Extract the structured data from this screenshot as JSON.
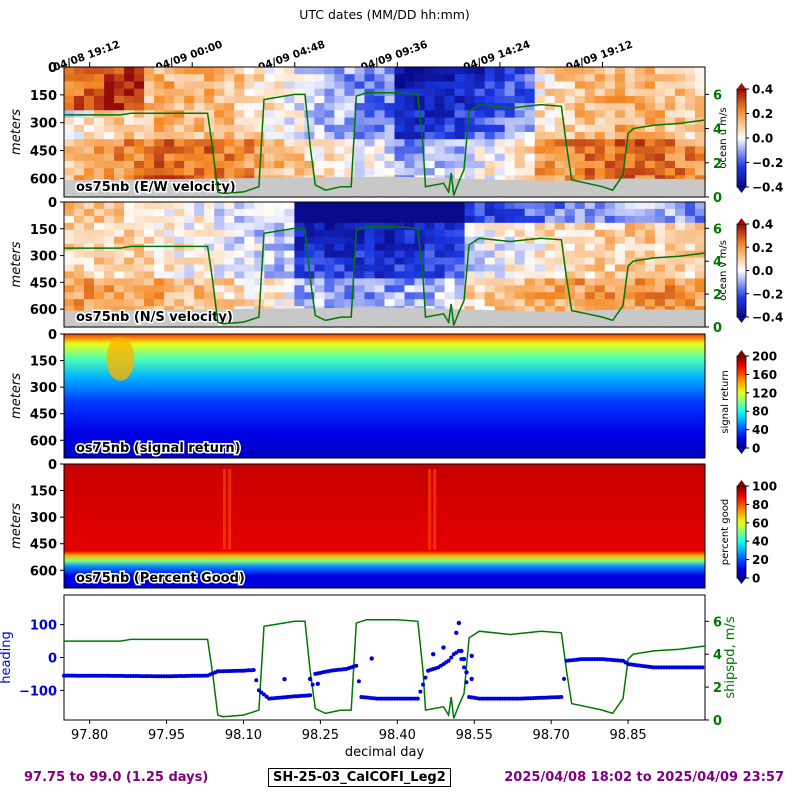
{
  "chart_data": {
    "type": "heatmap",
    "top_axis": {
      "title": "UTC dates (MM/DD hh:mm)",
      "ticks": [
        {
          "label": "04/08 19:12",
          "x": 97.8
        },
        {
          "label": "04/09 00:00",
          "x": 98.0
        },
        {
          "label": "04/09 04:48",
          "x": 98.2
        },
        {
          "label": "04/09 09:36",
          "x": 98.4
        },
        {
          "label": "04/09 14:24",
          "x": 98.6
        },
        {
          "label": "04/09 19:12",
          "x": 98.8
        }
      ]
    },
    "xlim": [
      97.75,
      99.0
    ],
    "x_ticks": [
      97.8,
      97.95,
      98.1,
      98.25,
      98.4,
      98.55,
      98.7,
      98.85
    ],
    "x_tick_labels": [
      "97.80",
      "97.95",
      "98.10",
      "98.25",
      "98.40",
      "98.55",
      "98.70",
      "98.85"
    ],
    "xlabel": "decimal day",
    "depth_ylim": [
      0,
      700
    ],
    "depth_ticks": [
      0,
      150,
      300,
      450,
      600
    ],
    "depth_tick_labels": [
      "0",
      "150",
      "300",
      "450",
      "600"
    ],
    "depth_ylabel": "meters",
    "shipspd_ylim": [
      0,
      7.6
    ],
    "shipspd_ticks": [
      0,
      2,
      4,
      6
    ],
    "shipspd_tick_labels": [
      "0",
      "2",
      "4",
      "6"
    ],
    "panels": [
      {
        "kind": "velocity",
        "label": "os75nb (E/W velocity)",
        "colorbar_label": "ocean u m/s",
        "colorbar_ticks": [
          "0.4",
          "0.2",
          "0.0",
          "−0.2",
          "−0.4"
        ],
        "vmin": -0.4,
        "vmax": 0.4,
        "colormap": "bwr"
      },
      {
        "kind": "velocity",
        "label": "os75nb (N/S velocity)",
        "colorbar_label": "ocean v m/s",
        "colorbar_ticks": [
          "0.4",
          "0.2",
          "0.0",
          "−0.2",
          "−0.4"
        ],
        "vmin": -0.4,
        "vmax": 0.4,
        "colormap": "bwr"
      },
      {
        "kind": "amp",
        "label": "os75nb (signal return)",
        "colorbar_label": "signal return",
        "colorbar_ticks": [
          "200",
          "160",
          "120",
          "80",
          "40",
          "0"
        ],
        "vmin": 0,
        "vmax": 200,
        "colormap": "jet"
      },
      {
        "kind": "pg",
        "label": "os75nb (Percent Good)",
        "colorbar_label": "percent good",
        "colorbar_ticks": [
          "100",
          "80",
          "60",
          "40",
          "20",
          "0"
        ],
        "vmin": 0,
        "vmax": 100,
        "colormap": "jet"
      }
    ],
    "heading_panel": {
      "ylabel_left": "heading",
      "ylabel_right": "shipspd, m/s",
      "left_ylim": [
        -190,
        190
      ],
      "left_ticks": [
        100,
        0,
        -100
      ],
      "left_tick_labels": [
        "100",
        "0",
        "−100"
      ],
      "heading_color": "#0000dd",
      "shipspd_color": "#007700"
    },
    "ship_speed_series": {
      "name": "",
      "color": "#007700",
      "points": [
        [
          97.75,
          4.8
        ],
        [
          97.86,
          4.8
        ],
        [
          97.88,
          4.9
        ],
        [
          97.96,
          4.9
        ],
        [
          98.03,
          4.9
        ],
        [
          98.04,
          2.8
        ],
        [
          98.05,
          0.3
        ],
        [
          98.06,
          0.2
        ],
        [
          98.1,
          0.3
        ],
        [
          98.13,
          0.6
        ],
        [
          98.14,
          5.7
        ],
        [
          98.2,
          6.0
        ],
        [
          98.22,
          6.0
        ],
        [
          98.23,
          3.0
        ],
        [
          98.24,
          0.7
        ],
        [
          98.26,
          0.4
        ],
        [
          98.29,
          0.6
        ],
        [
          98.31,
          0.6
        ],
        [
          98.32,
          5.9
        ],
        [
          98.34,
          6.1
        ],
        [
          98.4,
          6.1
        ],
        [
          98.44,
          6.0
        ],
        [
          98.45,
          3.0
        ],
        [
          98.455,
          0.6
        ],
        [
          98.49,
          0.8
        ],
        [
          98.5,
          0.3
        ],
        [
          98.505,
          1.4
        ],
        [
          98.51,
          0.1
        ],
        [
          98.52,
          0.9
        ],
        [
          98.53,
          1.6
        ],
        [
          98.54,
          5.0
        ],
        [
          98.56,
          5.4
        ],
        [
          98.62,
          5.2
        ],
        [
          98.68,
          5.4
        ],
        [
          98.72,
          5.3
        ],
        [
          98.73,
          3.0
        ],
        [
          98.74,
          1.0
        ],
        [
          98.77,
          0.8
        ],
        [
          98.8,
          0.6
        ],
        [
          98.82,
          0.4
        ],
        [
          98.84,
          1.3
        ],
        [
          98.85,
          3.7
        ],
        [
          98.86,
          4.0
        ],
        [
          98.9,
          4.2
        ],
        [
          98.95,
          4.3
        ],
        [
          99.0,
          4.5
        ]
      ]
    },
    "heading_series": {
      "name": "heading",
      "color": "#0000dd",
      "points": [
        [
          97.75,
          -55
        ],
        [
          97.86,
          -56
        ],
        [
          97.95,
          -57
        ],
        [
          98.03,
          -55
        ],
        [
          98.05,
          -42
        ],
        [
          98.1,
          -40
        ],
        [
          98.12,
          -38
        ],
        [
          98.13,
          -100
        ],
        [
          98.15,
          -125
        ],
        [
          98.2,
          -118
        ],
        [
          98.23,
          -115
        ],
        [
          98.24,
          -50
        ],
        [
          98.27,
          -40
        ],
        [
          98.3,
          -35
        ],
        [
          98.32,
          -25
        ],
        [
          98.33,
          -120
        ],
        [
          98.36,
          -125
        ],
        [
          98.44,
          -125
        ],
        [
          98.46,
          -40
        ],
        [
          98.48,
          -30
        ],
        [
          98.5,
          -10
        ],
        [
          98.51,
          10
        ],
        [
          98.52,
          20
        ],
        [
          98.53,
          -30
        ],
        [
          98.54,
          -120
        ],
        [
          98.56,
          -125
        ],
        [
          98.64,
          -125
        ],
        [
          98.72,
          -120
        ],
        [
          98.73,
          -10
        ],
        [
          98.76,
          -5
        ],
        [
          98.8,
          -5
        ],
        [
          98.84,
          -10
        ],
        [
          98.85,
          -20
        ],
        [
          98.9,
          -30
        ],
        [
          98.95,
          -30
        ],
        [
          99.0,
          -30
        ]
      ]
    },
    "heading_outliers": [
      [
        98.35,
        -3
      ],
      [
        98.47,
        10
      ],
      [
        98.49,
        30
      ],
      [
        98.515,
        75
      ],
      [
        98.52,
        105
      ],
      [
        98.525,
        20
      ],
      [
        98.53,
        -5
      ],
      [
        98.545,
        5
      ],
      [
        98.535,
        -45
      ],
      [
        98.18,
        -66
      ],
      [
        98.545,
        -65
      ],
      [
        98.23,
        -65
      ],
      [
        98.245,
        -80
      ]
    ]
  },
  "footer": {
    "left": "97.75 to 99.0 (1.25 days)",
    "center": "SH-25-03_CalCOFI_Leg2",
    "right": "2025/04/08 18:02 to 2025/04/09 23:57"
  }
}
